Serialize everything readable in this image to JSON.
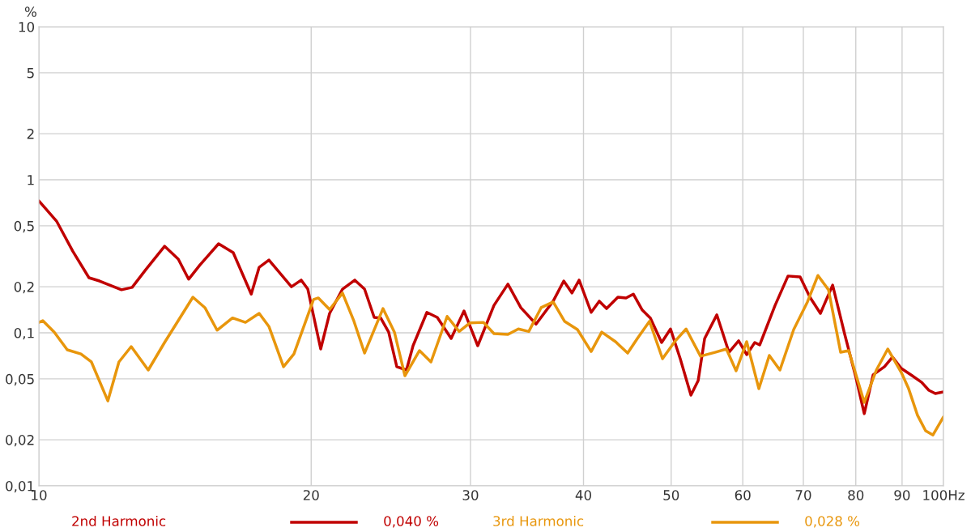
{
  "chart_data": {
    "type": "line",
    "ylabel": "%",
    "log": "xy",
    "grid": true,
    "legend": "bottom",
    "marker": "none",
    "line_style": "solid",
    "xlim": [
      10,
      100
    ],
    "xticks": [
      10,
      20,
      30,
      40,
      50,
      60,
      70,
      80,
      90,
      {
        "value": 100,
        "label": "100Hz"
      }
    ],
    "ylim": [
      0.01,
      10
    ],
    "yticks": [
      {
        "value": 0.01,
        "label": "0,01"
      },
      {
        "value": 0.02,
        "label": "0,02"
      },
      {
        "value": 0.05,
        "label": "0,05"
      },
      {
        "value": 0.1,
        "label": "0,1"
      },
      {
        "value": 0.2,
        "label": "0,2"
      },
      {
        "value": 0.5,
        "label": "0,5"
      },
      1,
      2,
      5,
      10
    ],
    "annotations": [
      "0,040 %",
      "0,028 %"
    ],
    "series": [
      {
        "name": "2nd Harmonic",
        "color": "#c00000",
        "x": [
          10.0,
          10.46,
          10.9,
          11.36,
          11.67,
          12.34,
          12.68,
          13.13,
          13.77,
          14.26,
          14.64,
          15.07,
          15.8,
          16.4,
          17.17,
          17.52,
          17.96,
          19.02,
          19.5,
          19.83,
          20.49,
          20.96,
          21.66,
          22.35,
          22.91,
          23.48,
          23.87,
          24.36,
          24.87,
          25.49,
          25.92,
          26.85,
          27.57,
          28.56,
          29.51,
          30.56,
          31.85,
          33.0,
          34.1,
          35.45,
          37.03,
          38.04,
          38.84,
          39.56,
          40.79,
          41.64,
          42.42,
          43.66,
          44.57,
          45.41,
          46.45,
          47.42,
          48.8,
          49.92,
          51.17,
          52.58,
          53.56,
          54.45,
          56.16,
          57.92,
          59.37,
          60.6,
          61.86,
          62.64,
          65.14,
          67.32,
          69.43,
          71.18,
          73.11,
          75.42,
          77.78,
          80.06,
          81.74,
          83.61,
          86.05,
          87.85,
          89.83,
          92.08,
          94.59,
          96.36,
          97.95,
          100.0
        ],
        "values": [
          0.728,
          0.537,
          0.342,
          0.229,
          0.218,
          0.191,
          0.198,
          0.259,
          0.368,
          0.303,
          0.224,
          0.278,
          0.382,
          0.334,
          0.179,
          0.268,
          0.299,
          0.2,
          0.221,
          0.193,
          0.0784,
          0.134,
          0.193,
          0.221,
          0.193,
          0.126,
          0.125,
          0.101,
          0.06,
          0.0571,
          0.0823,
          0.136,
          0.126,
          0.0918,
          0.139,
          0.0823,
          0.151,
          0.208,
          0.146,
          0.114,
          0.161,
          0.218,
          0.182,
          0.221,
          0.136,
          0.161,
          0.144,
          0.171,
          0.169,
          0.179,
          0.141,
          0.125,
          0.0864,
          0.106,
          0.0677,
          0.0391,
          0.0487,
          0.0918,
          0.131,
          0.0746,
          0.0886,
          0.072,
          0.0864,
          0.0833,
          0.151,
          0.235,
          0.232,
          0.171,
          0.134,
          0.205,
          0.0976,
          0.0505,
          0.0296,
          0.0531,
          0.06,
          0.0694,
          0.0585,
          0.0531,
          0.0475,
          0.0421,
          0.0401,
          0.0411
        ]
      },
      {
        "name": "3rd Harmonic",
        "color": "#e8960c",
        "x": [
          10.0,
          10.1,
          10.4,
          10.75,
          11.13,
          11.43,
          11.92,
          12.26,
          12.65,
          13.21,
          13.77,
          14.8,
          15.26,
          15.74,
          16.37,
          16.92,
          17.52,
          17.96,
          18.64,
          19.14,
          20.12,
          20.37,
          20.96,
          21.66,
          22.3,
          22.91,
          24.01,
          24.72,
          25.39,
          26.35,
          27.13,
          28.27,
          29.15,
          29.95,
          31.01,
          31.85,
          33.0,
          33.89,
          34.8,
          35.91,
          37.03,
          38.11,
          39.39,
          40.79,
          41.9,
          43.4,
          44.76,
          45.88,
          47.32,
          48.91,
          50.45,
          51.94,
          53.88,
          55.91,
          57.55,
          58.99,
          60.6,
          62.51,
          64.19,
          65.95,
          68.3,
          70.73,
          72.65,
          74.63,
          76.97,
          78.58,
          81.74,
          84.3,
          86.78,
          89.83,
          91.52,
          93.61,
          95.56,
          97.36,
          100.0
        ],
        "values": [
          0.117,
          0.12,
          0.101,
          0.0774,
          0.0728,
          0.0645,
          0.0359,
          0.0645,
          0.0813,
          0.0571,
          0.0864,
          0.171,
          0.146,
          0.104,
          0.125,
          0.117,
          0.134,
          0.11,
          0.06,
          0.0728,
          0.165,
          0.169,
          0.142,
          0.182,
          0.119,
          0.0737,
          0.144,
          0.101,
          0.0524,
          0.0765,
          0.0645,
          0.128,
          0.102,
          0.116,
          0.117,
          0.0988,
          0.0976,
          0.106,
          0.102,
          0.146,
          0.159,
          0.119,
          0.105,
          0.0755,
          0.101,
          0.0875,
          0.0737,
          0.0918,
          0.119,
          0.0677,
          0.0875,
          0.106,
          0.0703,
          0.0746,
          0.0784,
          0.0564,
          0.0875,
          0.0431,
          0.0711,
          0.0571,
          0.105,
          0.159,
          0.237,
          0.191,
          0.0746,
          0.0765,
          0.0351,
          0.0571,
          0.0784,
          0.055,
          0.0431,
          0.0289,
          0.0229,
          0.0215,
          0.0282
        ]
      }
    ]
  }
}
